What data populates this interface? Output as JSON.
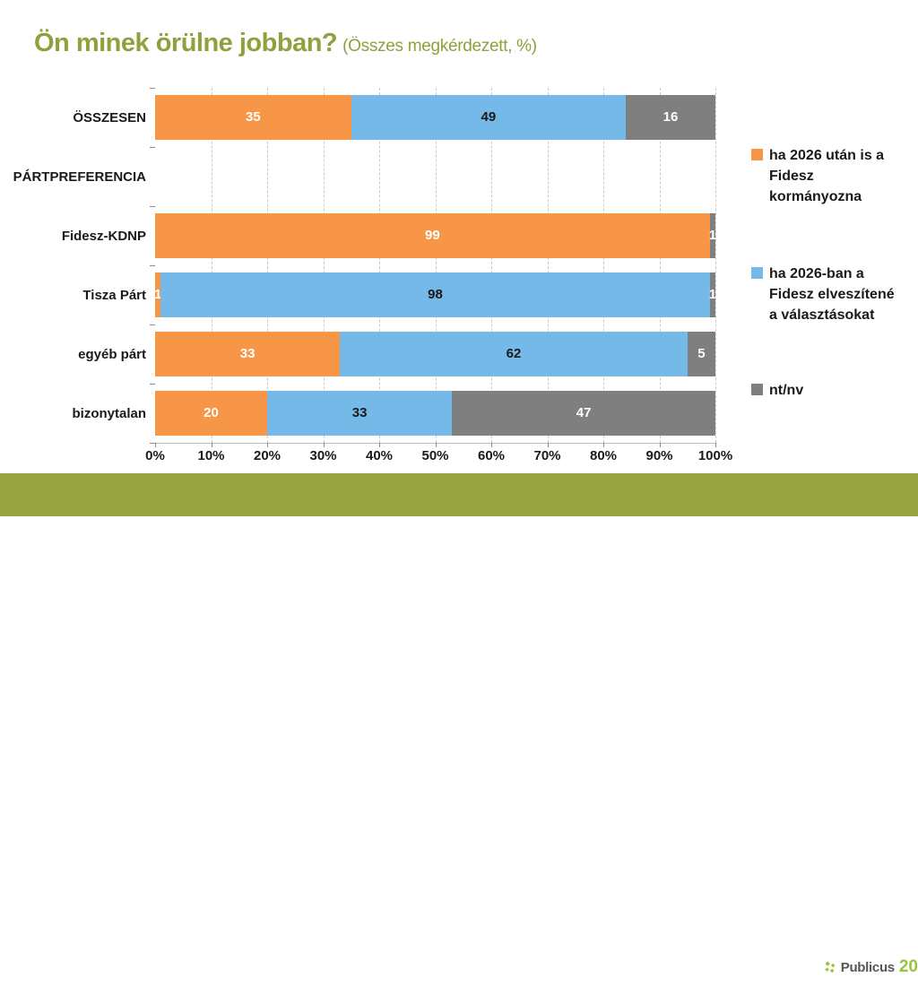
{
  "title": "Ön minek örülne jobban?",
  "subtitle": "(Összes megkérdezett, %)",
  "colors": {
    "accent_olive_title": "#8FA03C",
    "accent_olive_footer": "#97A33F",
    "orange": "#F79646",
    "blue": "#75B9E8",
    "gray": "#7F7F7F",
    "gridline": "#C9C9C9",
    "logo_green": "#9BC23C",
    "logo_text_gray": "#55565A"
  },
  "chart_data": {
    "type": "bar",
    "variant": "horizontal-stacked",
    "title": "Ön minek örülne jobban?",
    "subtitle": "(Összes megkérdezett, %)",
    "categories": [
      "ÖSSZESEN",
      "PÁRTPREFERENCIA",
      "Fidesz-KDNP",
      "Tisza Párt",
      "egyéb párt",
      "bizonytalan"
    ],
    "series": [
      {
        "name": "ha 2026 után is a Fidesz kormányozna",
        "color": "#F79646",
        "label_color": "#FFFFFF",
        "values": [
          35,
          null,
          99,
          1,
          33,
          20
        ]
      },
      {
        "name": "ha 2026-ban a Fidesz elveszítené a választásokat",
        "color": "#75B9E8",
        "label_color": "#1A1A1A",
        "values": [
          49,
          null,
          0,
          98,
          62,
          33
        ]
      },
      {
        "name": "nt/nv",
        "color": "#7F7F7F",
        "label_color": "#FFFFFF",
        "values": [
          16,
          null,
          1,
          1,
          5,
          47
        ]
      }
    ],
    "x_tick_labels": [
      "0%",
      "10%",
      "20%",
      "30%",
      "40%",
      "50%",
      "60%",
      "70%",
      "80%",
      "90%",
      "100%"
    ],
    "xlim": [
      0,
      100
    ],
    "grid": "vertical-dashed",
    "legend_position": "right"
  },
  "footer": {
    "logo_icon": "publicus-diamonds-icon",
    "brand": "Publicus",
    "brand_number": "20"
  }
}
